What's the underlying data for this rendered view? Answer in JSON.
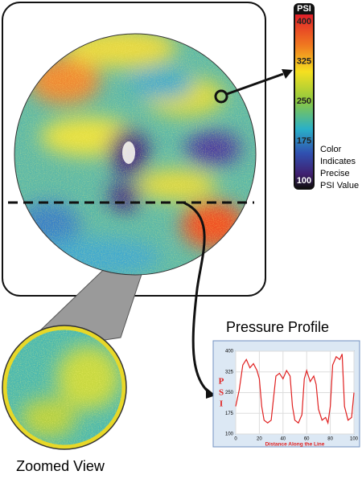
{
  "colorbar": {
    "title": "PSI",
    "ticks": [
      400,
      325,
      250,
      175,
      100
    ],
    "caption": [
      "Color",
      "Indicates",
      "Precise",
      "PSI Value"
    ]
  },
  "profile": {
    "title": "Pressure Profile",
    "xlabel": "Distance Along the Line",
    "ylabel": [
      "P",
      "S",
      "I"
    ],
    "xlim": [
      0,
      100
    ],
    "ylim": [
      100,
      400
    ],
    "xticks": [
      0,
      20,
      40,
      60,
      80,
      100
    ],
    "yticks": [
      100,
      175,
      250,
      325,
      400
    ],
    "x": [
      0,
      3,
      6,
      9,
      12,
      15,
      18,
      20,
      22,
      24,
      27,
      30,
      32,
      34,
      37,
      40,
      43,
      46,
      48,
      50,
      53,
      56,
      58,
      60,
      63,
      66,
      68,
      70,
      73,
      76,
      78,
      80,
      82,
      85,
      88,
      90,
      92,
      95,
      98,
      100
    ],
    "values": [
      200,
      260,
      350,
      370,
      340,
      355,
      330,
      300,
      200,
      150,
      140,
      150,
      230,
      310,
      320,
      300,
      330,
      310,
      200,
      150,
      140,
      170,
      300,
      330,
      290,
      310,
      280,
      190,
      150,
      160,
      140,
      200,
      350,
      380,
      370,
      390,
      200,
      150,
      160,
      250
    ]
  },
  "zoom": {
    "label": "Zoomed View"
  }
}
